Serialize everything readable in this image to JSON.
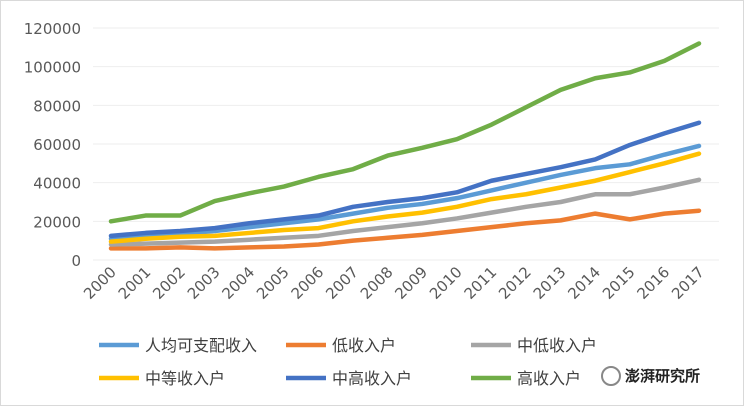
{
  "chart_data": {
    "type": "line",
    "title": "",
    "xlabel": "",
    "ylabel": "",
    "ylim": [
      0,
      120000
    ],
    "yticks": [
      0,
      20000,
      40000,
      60000,
      80000,
      100000,
      120000
    ],
    "grid": true,
    "legend_position": "bottom",
    "x": [
      "2000",
      "2001",
      "2002",
      "2003",
      "2004",
      "2005",
      "2006",
      "2007",
      "2008",
      "2009",
      "2010",
      "2011",
      "2012",
      "2013",
      "2014",
      "2015",
      "2016",
      "2017"
    ],
    "series": [
      {
        "name": "人均可支配收入",
        "color": "#5b9bd5",
        "values": [
          11000,
          12500,
          13500,
          15000,
          17000,
          19000,
          21000,
          24000,
          27000,
          29000,
          32000,
          36000,
          40000,
          44000,
          47500,
          49500,
          54500,
          59000
        ]
      },
      {
        "name": "低收入户",
        "color": "#ed7d31",
        "values": [
          6000,
          6000,
          6500,
          6000,
          6500,
          7000,
          8000,
          10000,
          11500,
          13000,
          15000,
          17000,
          19000,
          20500,
          24000,
          21000,
          24000,
          25500
        ]
      },
      {
        "name": "中低收入户",
        "color": "#a5a5a5",
        "values": [
          8000,
          8500,
          9000,
          9500,
          10500,
          11500,
          12500,
          15000,
          17000,
          19000,
          21500,
          24500,
          27500,
          30000,
          34000,
          34000,
          37500,
          41500
        ]
      },
      {
        "name": "中等收入户",
        "color": "#ffc000",
        "values": [
          9500,
          11000,
          12000,
          12500,
          14000,
          15500,
          16500,
          20000,
          22500,
          24500,
          27500,
          31500,
          34000,
          37500,
          41000,
          45500,
          50000,
          55000
        ]
      },
      {
        "name": "中高收入户",
        "color": "#4472c4",
        "values": [
          12500,
          14000,
          15000,
          16500,
          19000,
          21000,
          23000,
          27500,
          30000,
          32000,
          35000,
          41000,
          44500,
          48000,
          52000,
          59500,
          65500,
          71000
        ]
      },
      {
        "name": "高收入户",
        "color": "#70ad47",
        "values": [
          20000,
          23000,
          23000,
          30500,
          34500,
          38000,
          43000,
          47000,
          54000,
          58000,
          62500,
          70000,
          79000,
          88000,
          94000,
          97000,
          103000,
          112000
        ]
      }
    ]
  },
  "watermark": {
    "text": "澎湃研究所"
  }
}
